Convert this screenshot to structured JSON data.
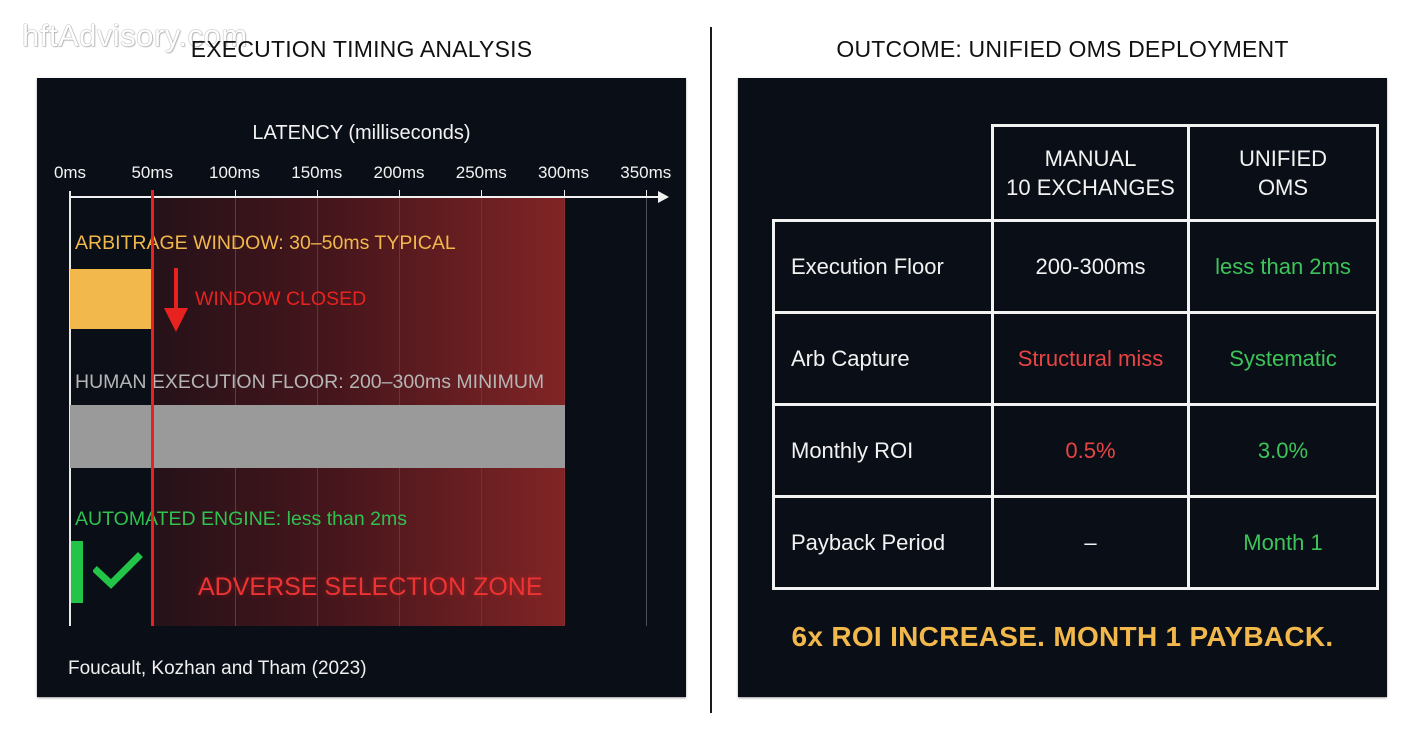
{
  "watermark": "hftAdvisory.com",
  "left_section": {
    "title": "EXECUTION TIMING ANALYSIS",
    "source": "Foucault, Kozhan and Tham (2023)"
  },
  "right_section": {
    "title": "OUTCOME: UNIFIED OMS DEPLOYMENT",
    "table": {
      "headers": [
        "",
        "MANUAL\n10 EXCHANGES",
        "UNIFIED\nOMS"
      ],
      "header_lines": [
        [
          "MANUAL",
          "10 EXCHANGES"
        ],
        [
          "UNIFIED",
          "OMS"
        ]
      ],
      "rows": [
        {
          "label": "Execution Floor",
          "manual": "200-300ms",
          "unified": "less than 2ms",
          "manual_color": "#f2f2f2",
          "unified_color": "#3cc45a"
        },
        {
          "label": "Arb Capture",
          "manual": "Structural miss",
          "unified": "Systematic",
          "manual_color": "#e84444",
          "unified_color": "#3cc45a"
        },
        {
          "label": "Monthly ROI",
          "manual": "0.5%",
          "unified": "3.0%",
          "manual_color": "#e84444",
          "unified_color": "#3cc45a"
        },
        {
          "label": "Payback Period",
          "manual": "–",
          "unified": "Month 1",
          "manual_color": "#f2f2f2",
          "unified_color": "#3cc45a"
        }
      ]
    },
    "conclusion": "6x ROI INCREASE. MONTH 1 PAYBACK."
  },
  "colors": {
    "panel_bg": "#0a0f17",
    "arbitrage": "#f2b84b",
    "threshold": "#e8231f",
    "human": "#9a9a9a",
    "automated": "#22c548",
    "adverse_zone": "#962828"
  },
  "chart_data": {
    "type": "bar",
    "orientation": "horizontal",
    "title": "EXECUTION TIMING ANALYSIS",
    "xlabel": "LATENCY (milliseconds)",
    "ylabel": "",
    "xlim": [
      0,
      350
    ],
    "x_ticks": [
      0,
      50,
      100,
      150,
      200,
      250,
      300,
      350
    ],
    "x_tick_labels": [
      "0ms",
      "50ms",
      "100ms",
      "150ms",
      "200ms",
      "250ms",
      "300ms",
      "350ms"
    ],
    "grid": true,
    "series": [
      {
        "name": "ARBITRAGE WINDOW: 30–50ms TYPICAL",
        "range": [
          0,
          50
        ],
        "color": "#f2b84b"
      },
      {
        "name": "HUMAN EXECUTION FLOOR: 200–300ms MINIMUM",
        "range": [
          0,
          300
        ],
        "color": "#9a9a9a"
      },
      {
        "name": "AUTOMATED ENGINE: less than 2ms",
        "range": [
          0,
          2
        ],
        "color": "#22c548"
      }
    ],
    "threshold": {
      "x": 50,
      "color": "#e8231f"
    },
    "shaded_region": {
      "label": "ADVERSE SELECTION ZONE",
      "range": [
        50,
        300
      ]
    },
    "annotations": [
      {
        "text": "WINDOW CLOSED",
        "x": 50,
        "marker": "down-arrow"
      },
      {
        "text": "ADVERSE SELECTION ZONE",
        "x": 175
      },
      {
        "text": "✓",
        "x": 2,
        "meaning": "checkmark for automated engine"
      }
    ],
    "source": "Foucault, Kozhan and Tham (2023)"
  }
}
